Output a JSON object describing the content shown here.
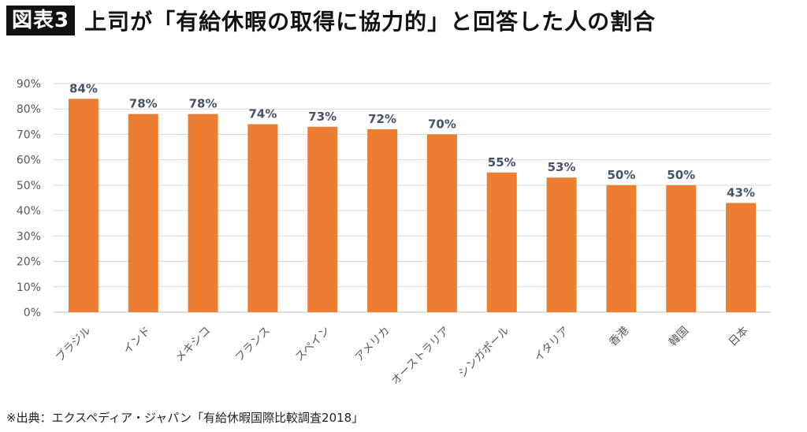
{
  "header": {
    "figure_tag": "図表3",
    "title": "上司が「有給休暇の取得に協力的」と回答した人の割合"
  },
  "colors": {
    "bar": "#ED7D31",
    "label": "#44546A",
    "axis_text": "#595959",
    "grid": "#D9D9D9"
  },
  "chart_data": {
    "type": "bar",
    "title": "上司が「有給休暇の取得に協力的」と回答した人の割合",
    "categories": [
      "ブラジル",
      "インド",
      "メキシコ",
      "フランス",
      "スペイン",
      "アメリカ",
      "オーストラリア",
      "シンガポール",
      "イタリア",
      "香港",
      "韓国",
      "日本"
    ],
    "values": [
      84,
      78,
      78,
      74,
      73,
      72,
      70,
      55,
      53,
      50,
      50,
      43
    ],
    "data_labels": [
      "84%",
      "78%",
      "78%",
      "74%",
      "73%",
      "72%",
      "70%",
      "55%",
      "53%",
      "50%",
      "50%",
      "43%"
    ],
    "yticks": [
      0,
      10,
      20,
      30,
      40,
      50,
      60,
      70,
      80,
      90
    ],
    "ytick_labels": [
      "0%",
      "10%",
      "20%",
      "30%",
      "40%",
      "50%",
      "60%",
      "70%",
      "80%",
      "90%"
    ],
    "ylim": [
      0,
      90
    ],
    "xlabel": "",
    "ylabel": "",
    "grid": true,
    "legend": "none"
  },
  "footer": {
    "source": "※出典：エクスペディア・ジャパン「有給休暇国際比較調査2018」"
  }
}
